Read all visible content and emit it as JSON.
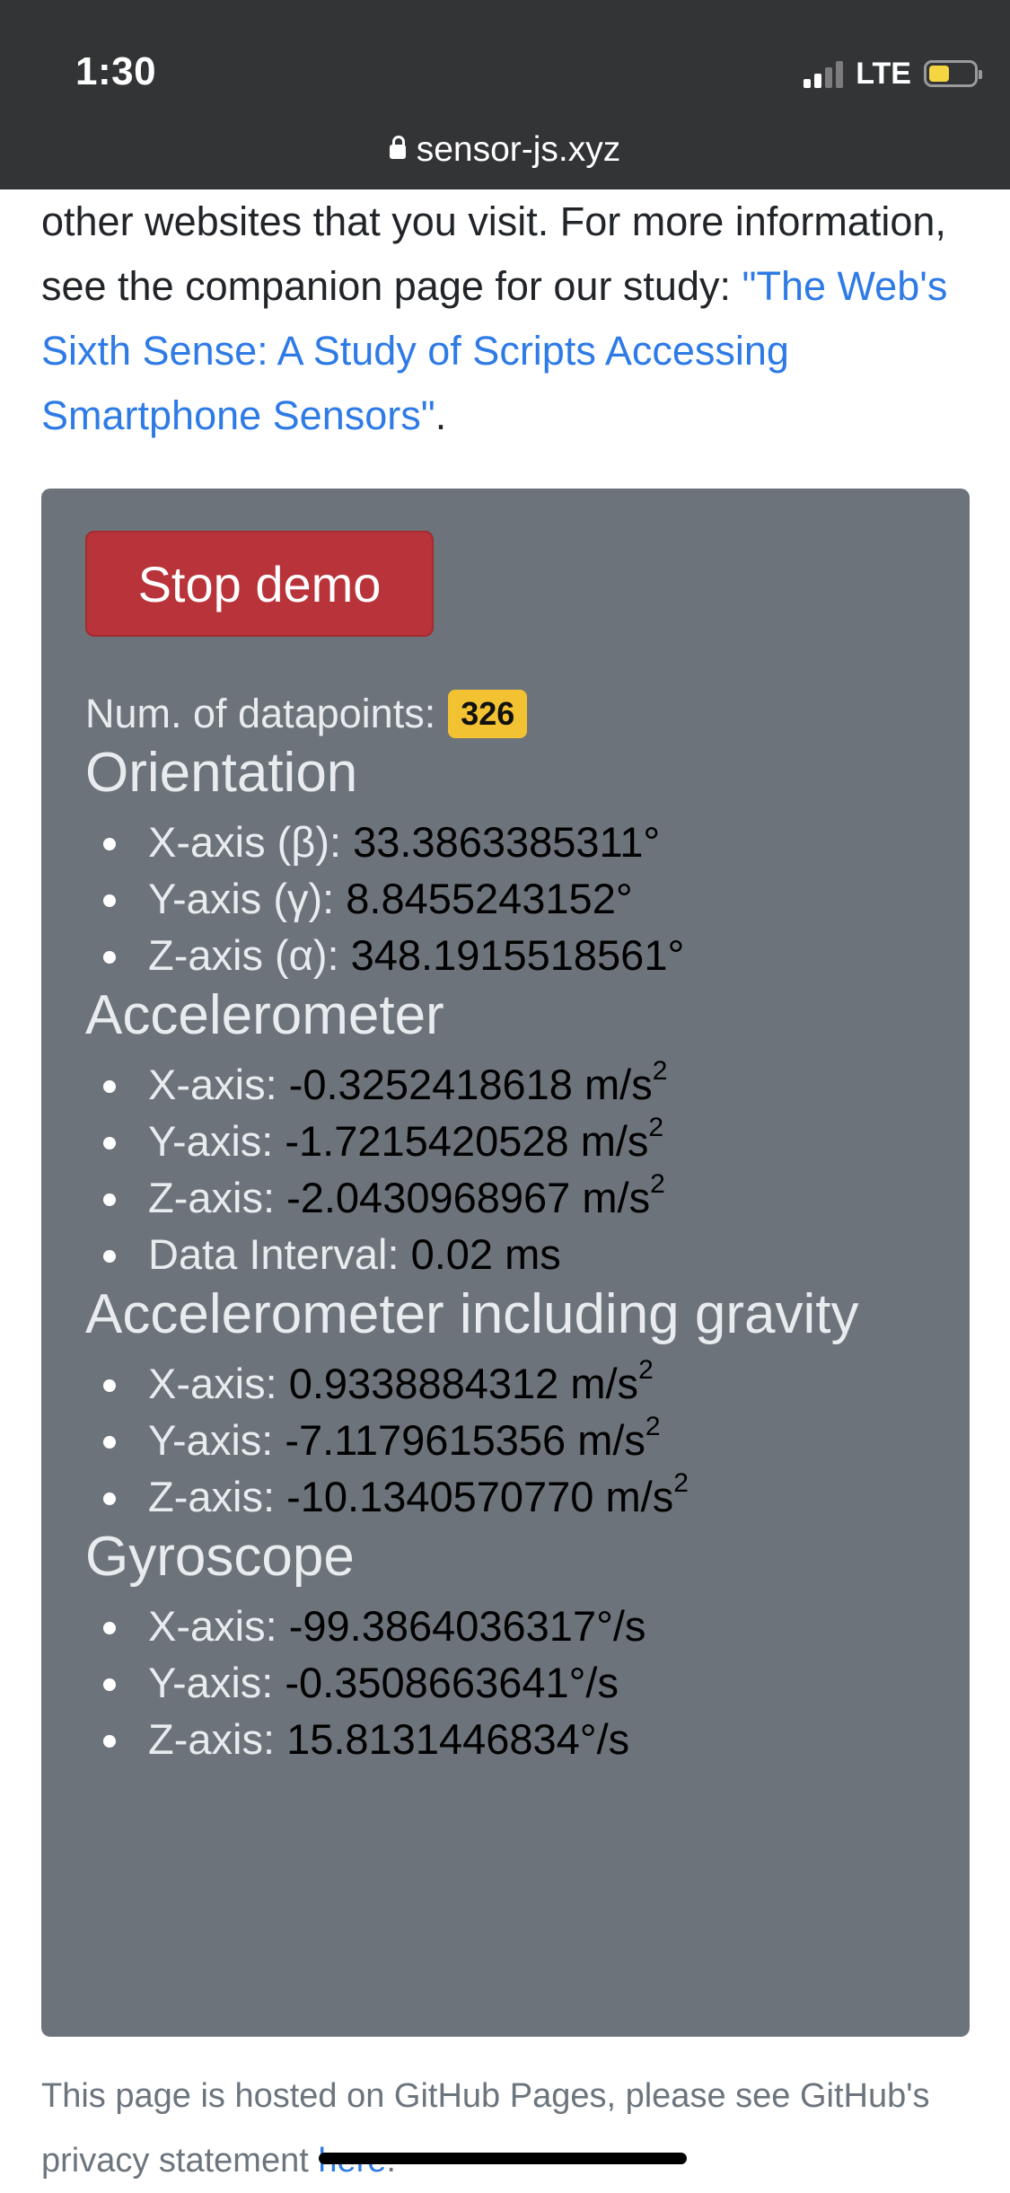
{
  "status_bar": {
    "time": "1:30",
    "network": "LTE",
    "battery_level": 0.45,
    "signal_bars_active": 2,
    "signal_bars_total": 4
  },
  "browser": {
    "url": "sensor-js.xyz",
    "lock_icon": "lock-icon"
  },
  "intro": {
    "text_before": "other websites that you visit. For more information, see the companion page for our study: ",
    "link_text": "\"The Web's Sixth Sense: A Study of Scripts Accessing Smartphone Sensors\"",
    "text_after": "."
  },
  "demo": {
    "stop_button_label": "Stop demo",
    "datapoints_label": "Num. of datapoints:",
    "datapoints_count": "326"
  },
  "orientation": {
    "title": "Orientation",
    "x_label": "X-axis (β): ",
    "x_value": "33.3863385311°",
    "y_label": "Y-axis (γ): ",
    "y_value": "8.8455243152°",
    "z_label": "Z-axis (α): ",
    "z_value": "348.1915518561°"
  },
  "accelerometer": {
    "title": "Accelerometer",
    "x_label": "X-axis: ",
    "x_value": "-0.3252418618 m/s",
    "y_label": "Y-axis: ",
    "y_value": "-1.7215420528 m/s",
    "z_label": "Z-axis: ",
    "z_value": "-2.0430968967 m/s",
    "interval_label": "Data Interval: ",
    "interval_value": "0.02 ms",
    "unit_exponent": "2"
  },
  "accelerometer_gravity": {
    "title": "Accelerometer including gravity",
    "x_label": "X-axis: ",
    "x_value": "0.9338884312 m/s",
    "y_label": "Y-axis: ",
    "y_value": "-7.1179615356 m/s",
    "z_label": "Z-axis: ",
    "z_value": "-10.1340570770 m/s",
    "unit_exponent": "2"
  },
  "gyroscope": {
    "title": "Gyroscope",
    "x_label": "X-axis: ",
    "x_value": "-99.3864036317°/s",
    "y_label": "Y-axis: ",
    "y_value": "-0.3508663641°/s",
    "z_label": "Z-axis: ",
    "z_value": "15.8131446834°/s"
  },
  "footer": {
    "text_before": "This page is hosted on GitHub Pages, please see GitHub's privacy statement ",
    "link_text": "here",
    "text_after": "."
  },
  "colors": {
    "chrome_bg": "#333436",
    "panel_bg": "#6c737a",
    "stop_button": "#b8343a",
    "badge": "#f3c232",
    "link": "#2f7be6"
  }
}
